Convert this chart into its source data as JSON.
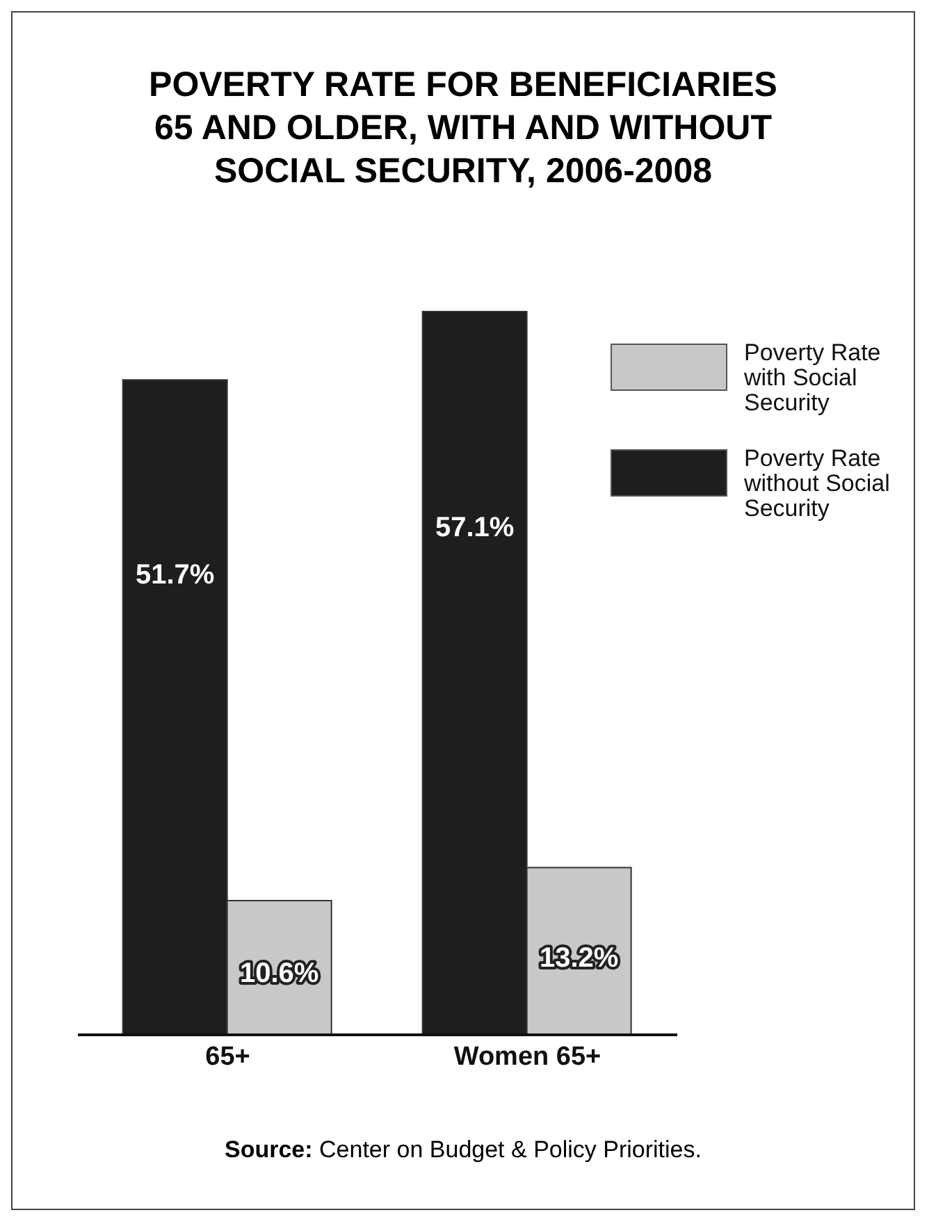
{
  "chart_data": {
    "type": "bar",
    "title": "POVERTY RATE FOR BENEFICIARIES 65 AND OLDER, WITH AND WITHOUT SOCIAL SECURITY, 2006-2008",
    "categories": [
      "65+",
      "Women 65+"
    ],
    "series": [
      {
        "name": "Poverty Rate with Social Security",
        "color": "#c8c8c8",
        "values": [
          10.6,
          13.2
        ],
        "value_labels": [
          "10.6%",
          "13.2%"
        ]
      },
      {
        "name": "Poverty Rate without Social Security",
        "color": "#1e1e1e",
        "values": [
          51.7,
          57.1
        ],
        "value_labels": [
          "51.7%",
          "57.1%"
        ]
      }
    ],
    "legend": "top right",
    "annotations": [
      "Source: Center on Budget & Policy Priorities."
    ]
  }
}
